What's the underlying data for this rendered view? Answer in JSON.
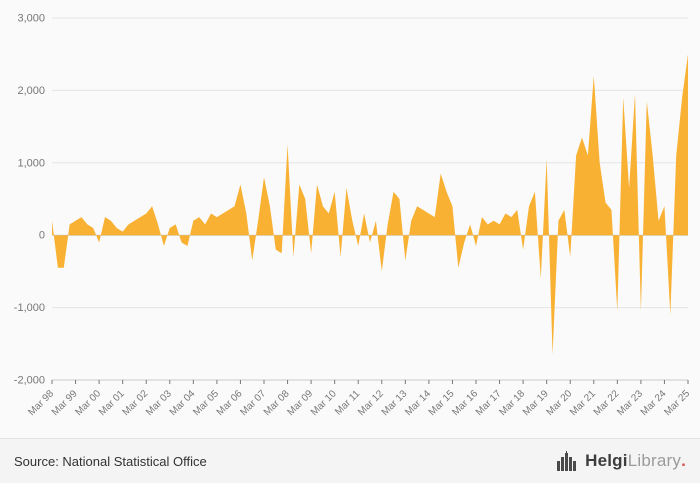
{
  "chart_data": {
    "type": "area",
    "title": "",
    "xlabel": "",
    "ylabel": "",
    "frequency": "quarterly",
    "x_tick_labels": [
      "Mar 98",
      "Mar 99",
      "Mar 00",
      "Mar 01",
      "Mar 02",
      "Mar 03",
      "Mar 04",
      "Mar 05",
      "Mar 06",
      "Mar 07",
      "Mar 08",
      "Mar 09",
      "Mar 10",
      "Mar 11",
      "Mar 12",
      "Mar 13",
      "Mar 14",
      "Mar 15",
      "Mar 16",
      "Mar 17",
      "Mar 18",
      "Mar 19",
      "Mar 20",
      "Mar 21",
      "Mar 22",
      "Mar 23",
      "Mar 24",
      "Mar 25"
    ],
    "values": [
      200,
      -450,
      -450,
      150,
      200,
      250,
      150,
      100,
      -100,
      250,
      200,
      100,
      50,
      150,
      200,
      250,
      300,
      400,
      150,
      -150,
      100,
      150,
      -100,
      -150,
      200,
      250,
      150,
      300,
      250,
      300,
      350,
      400,
      700,
      300,
      -350,
      200,
      800,
      400,
      -200,
      -250,
      1250,
      -300,
      700,
      500,
      -250,
      700,
      400,
      300,
      600,
      -300,
      650,
      200,
      -150,
      300,
      -100,
      200,
      -500,
      150,
      600,
      500,
      -350,
      200,
      400,
      350,
      300,
      250,
      850,
      600,
      400,
      -450,
      -100,
      150,
      -150,
      250,
      150,
      200,
      150,
      300,
      250,
      350,
      -200,
      400,
      600,
      -600,
      1050,
      -1650,
      200,
      350,
      -300,
      1100,
      1350,
      1100,
      2200,
      1000,
      450,
      350,
      -1050,
      1900,
      650,
      1950,
      -1050,
      1850,
      1100,
      200,
      400,
      -1100,
      1100,
      1900,
      2500
    ],
    "ylim": [
      -2000,
      3000
    ],
    "y_ticks": [
      3000,
      2000,
      1000,
      0,
      -1000,
      -2000
    ],
    "grid": true,
    "legend": false,
    "series_color": "#f8b133",
    "grid_color": "#e4e4e4",
    "zero_line_color": "#c9c9c9",
    "tick_label_color": "#777777"
  },
  "footer": {
    "source": "Source: National Statistical Office"
  },
  "logo": {
    "name": "Helgi",
    "suffix": "Library",
    "dot": "."
  }
}
